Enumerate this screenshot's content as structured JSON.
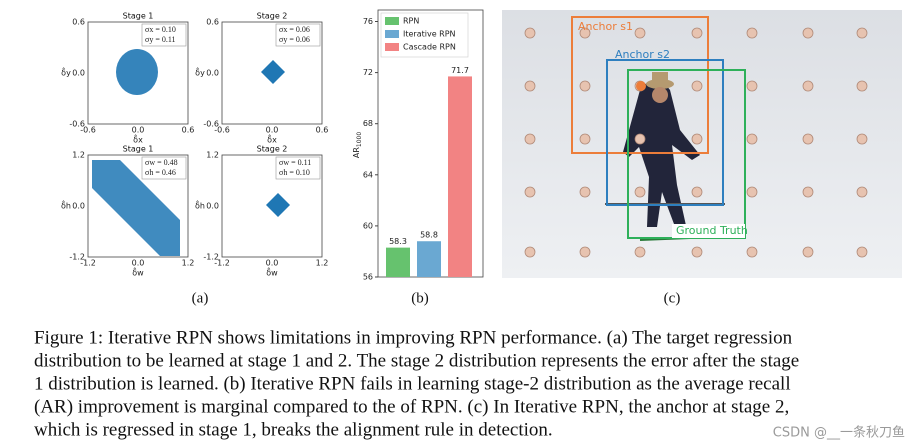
{
  "panel_a": {
    "caption": "(a)",
    "plots": [
      {
        "title": "Stage 1",
        "xlabel": "δ̂x",
        "ylabel": "δ̂y",
        "xticks": [
          "-0.6",
          "0.0",
          "0.6"
        ],
        "yticks": [
          "0.6",
          "0.0",
          "-0.6"
        ],
        "stats": [
          "σx = 0.10",
          "σy = 0.11"
        ]
      },
      {
        "title": "Stage 2",
        "xlabel": "δ̂x",
        "ylabel": "δ̂y",
        "xticks": [
          "-0.6",
          "0.0",
          "0.6"
        ],
        "yticks": [
          "0.6",
          "0.0",
          "-0.6"
        ],
        "stats": [
          "σx = 0.06",
          "σy = 0.06"
        ]
      },
      {
        "title": "Stage 1",
        "xlabel": "δ̂w",
        "ylabel": "δ̂h",
        "xticks": [
          "-1.2",
          "0.0",
          "1.2"
        ],
        "yticks": [
          "1.2",
          "0.0",
          "-1.2"
        ],
        "stats": [
          "σw = 0.48",
          "σh = 0.46"
        ]
      },
      {
        "title": "Stage 2",
        "xlabel": "δ̂w",
        "ylabel": "δ̂h",
        "xticks": [
          "-1.2",
          "0.0",
          "1.2"
        ],
        "yticks": [
          "1.2",
          "0.0",
          "-1.2"
        ],
        "stats": [
          "σw = 0.11",
          "σh = 0.10"
        ]
      }
    ]
  },
  "chart_data": {
    "type": "bar",
    "caption": "(b)",
    "ylabel": "AR",
    "ylabel_sub": "1000",
    "categories": [
      "RPN",
      "Iterative RPN",
      "Cascade RPN"
    ],
    "values": [
      58.3,
      58.8,
      71.7
    ],
    "colors": [
      "#66c26e",
      "#6aa8d2",
      "#f28383"
    ],
    "ylim": [
      56,
      76.9
    ],
    "yticks": [
      56,
      60,
      64,
      68,
      72,
      76
    ],
    "legend": "upper-left"
  },
  "panel_c": {
    "caption": "(c)",
    "labels": [
      "Anchor s1",
      "Anchor s2",
      "Ground Truth"
    ]
  },
  "figure_caption": [
    "Figure 1: Iterative RPN shows limitations in improving RPN performance. (a) The target regression",
    "distribution to be learned at stage 1 and 2. The stage 2 distribution represents the error after the stage",
    "1 distribution is learned. (b) Iterative RPN fails in learning stage-2 distribution as the average recall",
    "(AR) improvement is marginal compared to the of RPN. (c) In Iterative RPN, the anchor at stage 2,",
    "which is regressed in stage 1, breaks the alignment rule in detection."
  ],
  "watermark": "CSDN @__一条秋刀鱼"
}
